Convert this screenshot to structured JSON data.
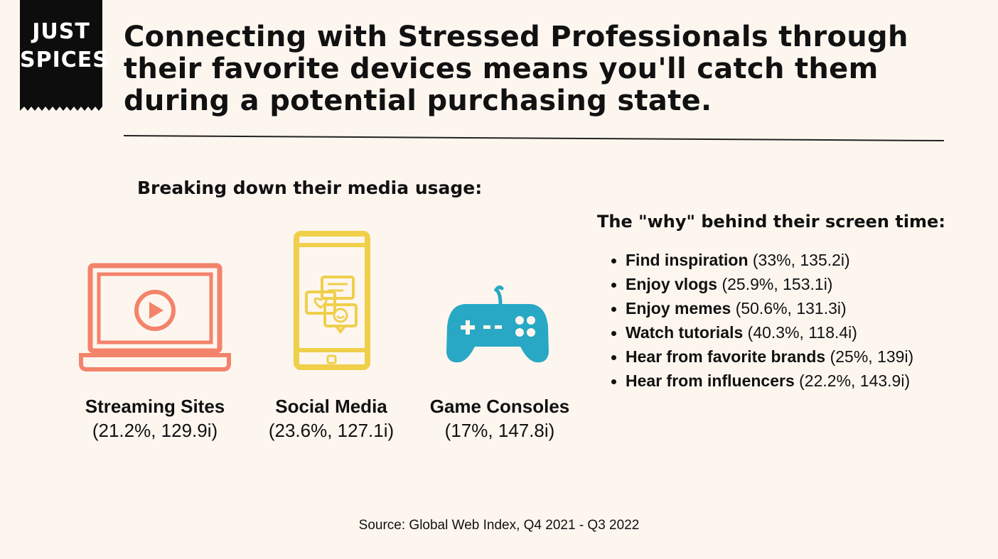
{
  "logo": {
    "line1": "JUST",
    "line2": "SPICES"
  },
  "headline": "Connecting with Stressed Professionals through their favorite devices means you'll catch them during a potential purchasing state.",
  "media_heading": "Breaking down their media usage:",
  "media": [
    {
      "name": "Streaming Sites",
      "stat": "(21.2%, 129.9i)",
      "icon": "laptop-play-icon"
    },
    {
      "name": "Social Media",
      "stat": "(23.6%, 127.1i)",
      "icon": "smartphone-chat-icon"
    },
    {
      "name": "Game Consoles",
      "stat": "(17%, 147.8i)",
      "icon": "gamepad-icon"
    }
  ],
  "why_heading": "The \"why\" behind their screen time:",
  "why": [
    {
      "reason": "Find inspiration",
      "stat": "(33%, 135.2i)"
    },
    {
      "reason": "Enjoy vlogs",
      "stat": "(25.9%, 153.1i)"
    },
    {
      "reason": "Enjoy memes",
      "stat": "(50.6%, 131.3i)"
    },
    {
      "reason": "Watch tutorials",
      "stat": "(40.3%, 118.4i)"
    },
    {
      "reason": "Hear from favorite brands",
      "stat": "(25%, 139i)"
    },
    {
      "reason": "Hear from influencers",
      "stat": "(22.2%, 143.9i)"
    }
  ],
  "source": "Source: Global Web Index, Q4 2021 - Q3 2022",
  "colors": {
    "background": "#fdf6ef",
    "laptop": "#f3836a",
    "phone": "#f0cf4a",
    "gamepad": "#28a8c4"
  }
}
